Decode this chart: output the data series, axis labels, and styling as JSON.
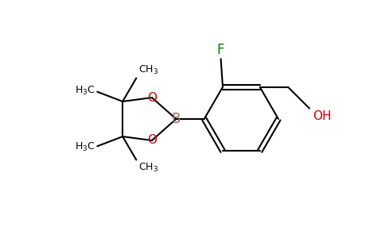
{
  "background_color": "#ffffff",
  "bond_color": "#000000",
  "atom_colors": {
    "B": "#9e6b5a",
    "O": "#cc0000",
    "F": "#008000",
    "OH": "#cc0000",
    "C": "#000000"
  },
  "bond_width": 1.5,
  "font_size": 10,
  "figsize": [
    4.84,
    3.0
  ],
  "dpi": 100
}
